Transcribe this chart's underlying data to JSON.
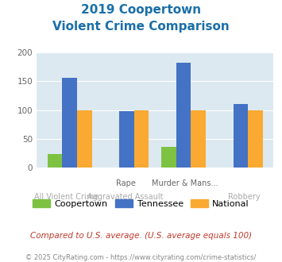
{
  "title_line1": "2019 Coopertown",
  "title_line2": "Violent Crime Comparison",
  "coopertown": [
    24,
    0,
    36,
    0
  ],
  "tennessee": [
    156,
    98,
    182,
    110
  ],
  "national": [
    100,
    100,
    100,
    100
  ],
  "colors": {
    "coopertown": "#7dc242",
    "tennessee": "#4472c4",
    "national": "#faa932"
  },
  "ylim": [
    0,
    200
  ],
  "yticks": [
    0,
    50,
    100,
    150,
    200
  ],
  "bg_color": "#dce9f0",
  "title_color": "#1a6fa8",
  "top_labels": [
    "",
    "Rape",
    "Murder & Mans...",
    ""
  ],
  "bot_labels": [
    "All Violent Crime",
    "Aggravated Assault",
    "",
    "Robbery"
  ],
  "footer_note": "Compared to U.S. average. (U.S. average equals 100)",
  "copyright": "© 2025 CityRating.com - https://www.cityrating.com/crime-statistics/",
  "legend_labels": [
    "Coopertown",
    "Tennessee",
    "National"
  ]
}
